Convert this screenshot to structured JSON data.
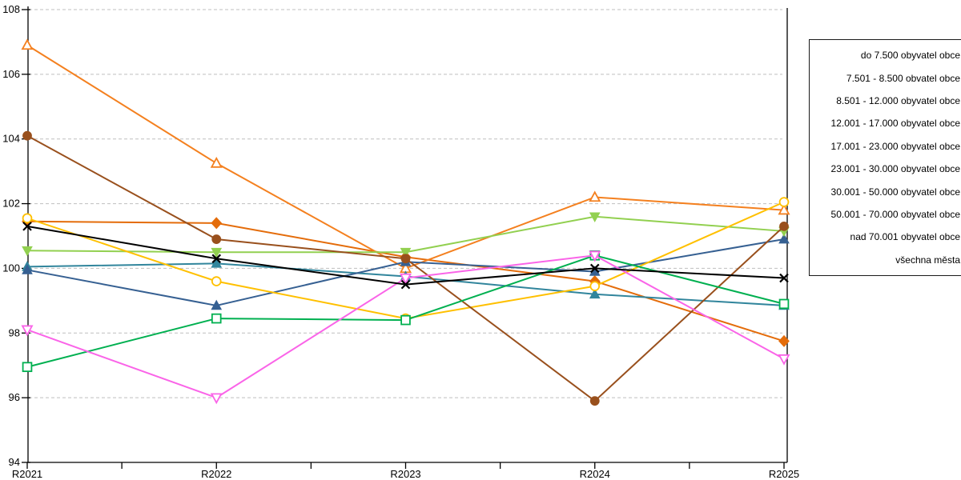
{
  "window": {
    "background": "#ffffff"
  },
  "legend": {
    "position": "right-outside",
    "border_color": "#1a1a1a",
    "clipped_at_right_edge": true,
    "items": [
      "do 7.500 obyvatel obce",
      "7.501 - 8.500 obvatel obce",
      "8.501 - 12.000 obyvatel obce",
      "12.001 - 17.000 obyvatel obce",
      "17.001 - 23.000 obyvatel obce",
      "23.001 - 30.000 obyvatel obce",
      "30.001 - 50.000 obyvatel obce",
      "50.001 - 70.000 obyvatel obce",
      "nad 70.001 obyvatel obce",
      "všechna města"
    ]
  },
  "chart_data": {
    "type": "line",
    "title": "",
    "xlabel": "",
    "ylabel": "",
    "categories": [
      "R2021",
      "R2022",
      "R2023",
      "R2024",
      "R2025"
    ],
    "ylim": [
      94,
      108
    ],
    "ytick_step": 2,
    "yticks": [
      94,
      96,
      98,
      100,
      102,
      104,
      106,
      108
    ],
    "grid": "horizontal-dashed",
    "gridline_color": "#bfbfbf",
    "axis_color": "#000000",
    "x_minor_ticks_between_categories": true,
    "legend_position": "right-outside",
    "series": [
      {
        "name": "12.001 - 17.000 obyvatel obce",
        "color": "#E46C0A",
        "marker": "diamond",
        "marker_fill": "solid",
        "values": [
          101.45,
          101.4,
          100.35,
          99.6,
          97.75
        ]
      },
      {
        "name": "do 7.500 obyvatel obce",
        "color": "#F4801F",
        "marker": "triangle-up",
        "marker_fill": "open",
        "values": [
          106.9,
          103.25,
          100.0,
          102.2,
          101.8
        ]
      },
      {
        "name": "23.001 - 30.000 obyvatel obce",
        "color": "#31859C",
        "marker": "triangle-up",
        "marker_fill": "solid",
        "values": [
          100.05,
          100.15,
          99.75,
          99.2,
          98.85
        ]
      },
      {
        "name": "30.001 - 50.000 obyvatel obce",
        "color": "#366092",
        "marker": "triangle-up",
        "marker_fill": "solid",
        "values": [
          99.95,
          98.85,
          100.2,
          99.9,
          100.9
        ]
      },
      {
        "name": "17.001 - 23.000 obyvatel obce",
        "color": "#92D050",
        "marker": "triangle-down",
        "marker_fill": "solid",
        "values": [
          100.55,
          100.5,
          100.5,
          101.6,
          101.15
        ]
      },
      {
        "name": "8.501 - 12.000 obyvatel obce",
        "color": "#FFC000",
        "marker": "circle",
        "marker_fill": "open",
        "values": [
          101.55,
          99.6,
          98.45,
          99.45,
          102.05
        ]
      },
      {
        "name": "7.501 - 8.500 obvatel obce",
        "color": "#99501D",
        "marker": "circle",
        "marker_fill": "solid",
        "values": [
          104.1,
          100.9,
          100.3,
          95.9,
          101.3
        ]
      },
      {
        "name": "nad 70.001 obyvatel obce",
        "color": "#00B050",
        "marker": "square",
        "marker_fill": "open",
        "values": [
          96.95,
          98.45,
          98.4,
          100.4,
          98.9
        ]
      },
      {
        "name": "50.001 - 70.000 obyvatel obce",
        "color": "#FA64E8",
        "marker": "triangle-down",
        "marker_fill": "open",
        "values": [
          98.1,
          96.0,
          99.7,
          100.4,
          97.2
        ]
      },
      {
        "name": "všechna města",
        "color": "#000000",
        "marker": "x",
        "marker_fill": "line",
        "values": [
          101.3,
          100.3,
          99.5,
          100.0,
          99.7
        ]
      }
    ]
  }
}
